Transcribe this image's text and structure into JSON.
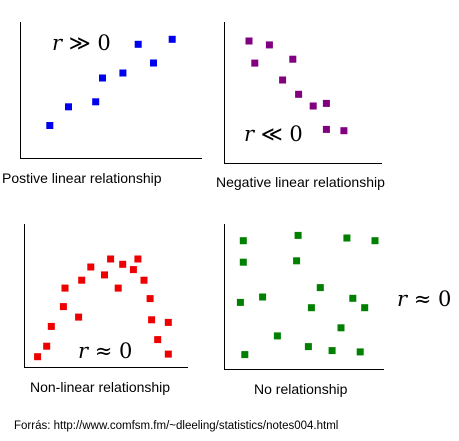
{
  "colors": {
    "positive": "#0000ee",
    "negative": "#800080",
    "nonlinear": "#ee0000",
    "none": "#008000",
    "axis": "#000000"
  },
  "panels": [
    {
      "id": "positive",
      "caption": "Postive linear relationship",
      "annotation": {
        "var": "r",
        "rel": "≫ 0"
      },
      "points": [
        [
          0.14,
          0.22
        ],
        [
          0.25,
          0.37
        ],
        [
          0.41,
          0.41
        ],
        [
          0.45,
          0.6
        ],
        [
          0.57,
          0.64
        ],
        [
          0.66,
          0.87
        ],
        [
          0.75,
          0.72
        ],
        [
          0.86,
          0.91
        ]
      ]
    },
    {
      "id": "negative",
      "caption": "Negative linear relationship",
      "annotation": {
        "var": "r",
        "rel": "≪ 0"
      },
      "points": [
        [
          0.13,
          0.9
        ],
        [
          0.27,
          0.87
        ],
        [
          0.17,
          0.73
        ],
        [
          0.43,
          0.76
        ],
        [
          0.36,
          0.6
        ],
        [
          0.47,
          0.49
        ],
        [
          0.57,
          0.4
        ],
        [
          0.66,
          0.42
        ],
        [
          0.66,
          0.22
        ],
        [
          0.78,
          0.21
        ]
      ]
    },
    {
      "id": "nonlinear",
      "caption": "Non-linear relationship",
      "annotation": {
        "var": "r",
        "rel": "≈ 0"
      },
      "points": [
        [
          0.05,
          0.04
        ],
        [
          0.11,
          0.12
        ],
        [
          0.14,
          0.27
        ],
        [
          0.22,
          0.42
        ],
        [
          0.23,
          0.56
        ],
        [
          0.32,
          0.34
        ],
        [
          0.34,
          0.62
        ],
        [
          0.4,
          0.72
        ],
        [
          0.49,
          0.66
        ],
        [
          0.53,
          0.78
        ],
        [
          0.58,
          0.56
        ],
        [
          0.61,
          0.74
        ],
        [
          0.68,
          0.7
        ],
        [
          0.71,
          0.78
        ],
        [
          0.75,
          0.62
        ],
        [
          0.79,
          0.48
        ],
        [
          0.8,
          0.32
        ],
        [
          0.84,
          0.17
        ],
        [
          0.91,
          0.3
        ],
        [
          0.91,
          0.06
        ]
      ]
    },
    {
      "id": "none",
      "caption": "No relationship",
      "annotation": {
        "var": "r",
        "rel": "≈ 0"
      },
      "points": [
        [
          0.09,
          0.92
        ],
        [
          0.46,
          0.96
        ],
        [
          0.79,
          0.94
        ],
        [
          0.98,
          0.92
        ],
        [
          0.09,
          0.76
        ],
        [
          0.45,
          0.77
        ],
        [
          0.61,
          0.57
        ],
        [
          0.22,
          0.5
        ],
        [
          0.07,
          0.46
        ],
        [
          0.55,
          0.42
        ],
        [
          0.83,
          0.49
        ],
        [
          0.91,
          0.42
        ],
        [
          0.75,
          0.27
        ],
        [
          0.32,
          0.21
        ],
        [
          0.53,
          0.13
        ],
        [
          0.69,
          0.1
        ],
        [
          0.88,
          0.09
        ],
        [
          0.1,
          0.07
        ]
      ]
    }
  ],
  "source": "Forrás: http://www.comfsm.fm/~dleeling/statistics/notes004.html"
}
